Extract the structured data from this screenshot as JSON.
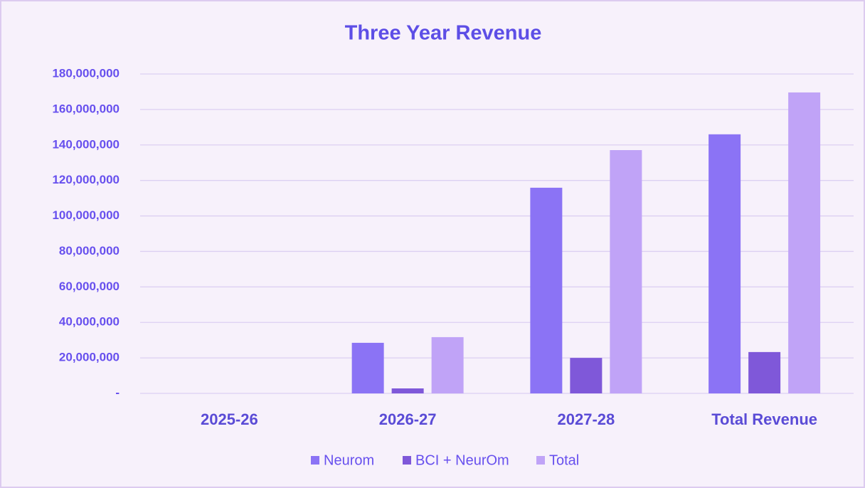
{
  "chart_data": {
    "type": "bar",
    "title": "Three Year Revenue",
    "categories": [
      "2025-26",
      "2026-27",
      "2027-28",
      "Total Revenue"
    ],
    "series": [
      {
        "name": "Neurom",
        "color": "#8b73f5",
        "values": [
          0,
          28500000,
          115900000,
          146000000
        ]
      },
      {
        "name": "BCI + NeurOm",
        "color": "#7f58d9",
        "values": [
          0,
          2800000,
          20000000,
          23300000
        ]
      },
      {
        "name": "Total",
        "color": "#c0a3f7",
        "values": [
          0,
          31700000,
          137100000,
          169600000
        ]
      }
    ],
    "ylim": [
      0,
      180000000
    ],
    "yticks": [
      {
        "value": 0,
        "label": "-"
      },
      {
        "value": 20000000,
        "label": "20,000,000"
      },
      {
        "value": 40000000,
        "label": "40,000,000"
      },
      {
        "value": 60000000,
        "label": "60,000,000"
      },
      {
        "value": 80000000,
        "label": "80,000,000"
      },
      {
        "value": 100000000,
        "label": "100,000,000"
      },
      {
        "value": 120000000,
        "label": "120,000,000"
      },
      {
        "value": 140000000,
        "label": "140,000,000"
      },
      {
        "value": 160000000,
        "label": "160,000,000"
      },
      {
        "value": 180000000,
        "label": "180,000,000"
      }
    ],
    "grid": true,
    "legend": "bottom"
  }
}
